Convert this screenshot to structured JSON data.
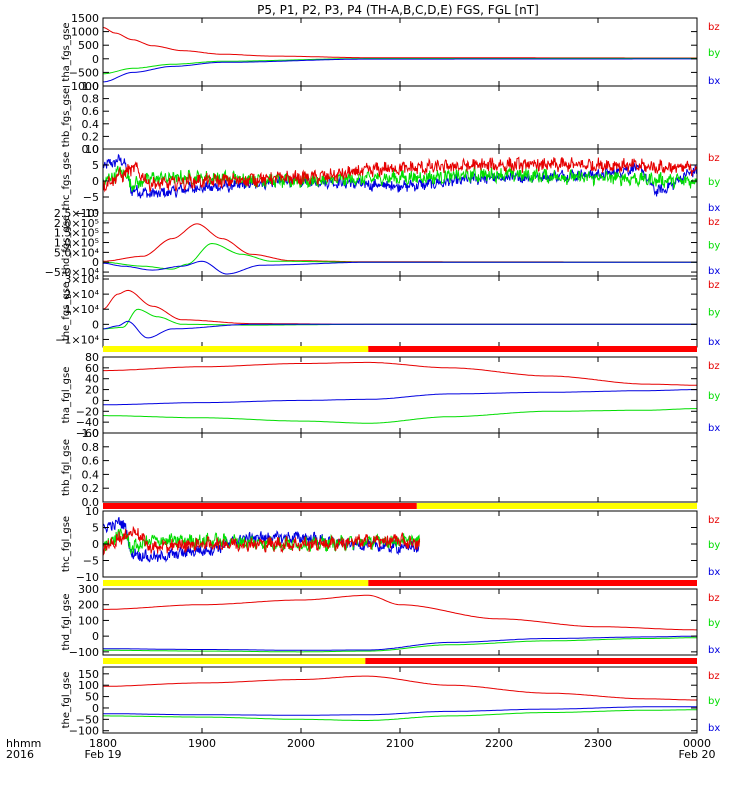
{
  "title": "P5, P1, P2, P3, P4 (TH-A,B,C,D,E) FGS, FGL [nT]",
  "colors": {
    "bz": "#e60000",
    "by": "#00dd00",
    "bx": "#0000e0",
    "bar_yellow": "#ffff00",
    "bar_red": "#ff0000"
  },
  "xaxis": {
    "row_labels": [
      "hhmm",
      "2016"
    ],
    "ticks": [
      {
        "x": 1800,
        "lines": [
          "1800",
          "Feb 19"
        ]
      },
      {
        "x": 1900,
        "lines": [
          "1900",
          ""
        ]
      },
      {
        "x": 2000,
        "lines": [
          "2000",
          ""
        ]
      },
      {
        "x": 2100,
        "lines": [
          "2100",
          ""
        ]
      },
      {
        "x": 2200,
        "lines": [
          "2200",
          ""
        ]
      },
      {
        "x": 2300,
        "lines": [
          "2300",
          ""
        ]
      },
      {
        "x": 2400,
        "lines": [
          "0000",
          "Feb 20"
        ]
      }
    ],
    "range": [
      1800,
      2400
    ]
  },
  "chart_data": [
    {
      "type": "line",
      "ylabel": "tha_fgs_gse",
      "ylim": [
        -1000,
        1500
      ],
      "ticks": [
        [
          "1500",
          1500
        ],
        [
          "1000",
          1000
        ],
        [
          "500",
          500
        ],
        [
          "0",
          0
        ],
        [
          "−500",
          -500
        ],
        [
          "−1000",
          -1000
        ]
      ],
      "legend": [
        "bz",
        "by",
        "bx"
      ],
      "series": [
        {
          "name": "bz",
          "shape": "decay",
          "x": [
            1800,
            1812,
            1830,
            1850,
            1880,
            1920,
            1970,
            2070,
            2400
          ],
          "y": [
            1150,
            950,
            700,
            480,
            300,
            170,
            100,
            40,
            30
          ]
        },
        {
          "name": "by",
          "shape": "smooth",
          "x": [
            1800,
            1830,
            1870,
            1920,
            2070,
            2400
          ],
          "y": [
            -550,
            -350,
            -200,
            -90,
            10,
            15
          ]
        },
        {
          "name": "bx",
          "shape": "smooth",
          "x": [
            1800,
            1830,
            1870,
            1920,
            2070,
            2400
          ],
          "y": [
            -850,
            -500,
            -280,
            -130,
            -10,
            -5
          ]
        }
      ]
    },
    {
      "type": "line",
      "ylabel": "thb_fgs_gse",
      "ylim": [
        0,
        1.0
      ],
      "ticks": [
        [
          "1.0",
          1.0
        ],
        [
          "0.8",
          0.8
        ],
        [
          "0.6",
          0.6
        ],
        [
          "0.4",
          0.4
        ],
        [
          "0.2",
          0.2
        ],
        [
          "0.0",
          0.0
        ]
      ],
      "legend": [],
      "series": []
    },
    {
      "type": "line",
      "ylabel": "thc_fgs_gse",
      "ylim": [
        -10,
        10
      ],
      "ticks": [
        [
          "10",
          10
        ],
        [
          "5",
          5
        ],
        [
          "0",
          0
        ],
        [
          "−5",
          -5
        ],
        [
          "−10",
          -10
        ]
      ],
      "legend": [
        "bz",
        "by",
        "bx"
      ],
      "series": [
        {
          "name": "bx",
          "shape": "noisy",
          "amp": 1.5,
          "x": [
            1800,
            1820,
            1830,
            1850,
            1900,
            2000,
            2100,
            2200,
            2300,
            2340,
            2360,
            2400
          ],
          "y": [
            5,
            6.5,
            -3,
            -4,
            -2,
            0,
            -1.5,
            1,
            2,
            4,
            -3,
            3
          ]
        },
        {
          "name": "by",
          "shape": "noisy",
          "amp": 1.8,
          "x": [
            1800,
            1820,
            1830,
            1850,
            1900,
            2000,
            2100,
            2200,
            2300,
            2400
          ],
          "y": [
            0,
            3,
            -1,
            1,
            1,
            0,
            1,
            2,
            1,
            0
          ]
        },
        {
          "name": "bz",
          "shape": "noisy",
          "amp": 1.8,
          "x": [
            1800,
            1820,
            1830,
            1850,
            1900,
            2000,
            2100,
            2200,
            2300,
            2400
          ],
          "y": [
            -1,
            2,
            4,
            -1,
            0,
            1,
            4,
            5,
            5,
            4
          ]
        }
      ]
    },
    {
      "type": "line",
      "ylabel": "thd_fgs_gse",
      "ylim": [
        -70000,
        250000
      ],
      "ticks": [
        [
          "2.5×10⁵",
          250000
        ],
        [
          "2.0×10⁵",
          200000
        ],
        [
          "1.5×10⁵",
          150000
        ],
        [
          "1.0×10⁵",
          100000
        ],
        [
          "5.0×10⁴",
          50000
        ],
        [
          "0",
          0
        ],
        [
          "−5.0×10⁴",
          -50000
        ]
      ],
      "legend": [
        "bz",
        "by",
        "bx"
      ],
      "series": [
        {
          "name": "bz",
          "shape": "smooth",
          "x": [
            1800,
            1840,
            1870,
            1895,
            1920,
            1950,
            1990,
            2070,
            2400
          ],
          "y": [
            5000,
            30000,
            120000,
            195000,
            120000,
            40000,
            8000,
            2000,
            1000
          ]
        },
        {
          "name": "by",
          "shape": "smooth",
          "x": [
            1800,
            1840,
            1870,
            1885,
            1910,
            1940,
            1970,
            2070,
            2400
          ],
          "y": [
            0,
            -20000,
            -35000,
            -10000,
            95000,
            40000,
            5000,
            0,
            0
          ]
        },
        {
          "name": "bx",
          "shape": "smooth",
          "x": [
            1800,
            1820,
            1850,
            1880,
            1900,
            1925,
            1960,
            2070,
            2400
          ],
          "y": [
            -5000,
            -20000,
            -40000,
            -20000,
            5000,
            -60000,
            -15000,
            0,
            0
          ]
        }
      ]
    },
    {
      "type": "line",
      "ylabel": "the_fgs_gse",
      "ylim": [
        -15000,
        32000
      ],
      "ticks": [
        [
          "3×10⁴",
          30000
        ],
        [
          "2×10⁴",
          20000
        ],
        [
          "1×10⁴",
          10000
        ],
        [
          "0",
          0
        ],
        [
          "−1×10⁴",
          -10000
        ]
      ],
      "legend": [
        "bz",
        "by",
        "bx"
      ],
      "series": [
        {
          "name": "bz",
          "shape": "smooth",
          "x": [
            1800,
            1815,
            1825,
            1850,
            1880,
            1950,
            2070,
            2400
          ],
          "y": [
            10000,
            20000,
            22500,
            12000,
            3000,
            500,
            0,
            0
          ]
        },
        {
          "name": "by",
          "shape": "smooth",
          "x": [
            1800,
            1820,
            1835,
            1855,
            1880,
            1950,
            2070,
            2400
          ],
          "y": [
            -3000,
            -2000,
            10000,
            5000,
            0,
            -500,
            0,
            0
          ]
        },
        {
          "name": "bx",
          "shape": "smooth",
          "x": [
            1800,
            1815,
            1825,
            1845,
            1870,
            1950,
            2070,
            2400
          ],
          "y": [
            -3000,
            -1000,
            2000,
            -9000,
            -3000,
            0,
            0,
            0
          ]
        }
      ]
    },
    {
      "type": "line",
      "ylabel": "tha_fgl_gse",
      "ylim": [
        -60,
        80
      ],
      "ticks": [
        [
          "80",
          80
        ],
        [
          "60",
          60
        ],
        [
          "40",
          40
        ],
        [
          "20",
          20
        ],
        [
          "0",
          0
        ],
        [
          "−20",
          -20
        ],
        [
          "−40",
          -40
        ],
        [
          "−60",
          -60
        ]
      ],
      "legend": [
        "bz",
        "by",
        "bx"
      ],
      "mode_bar": [
        [
          "yellow",
          1800,
          2068
        ],
        [
          "red",
          2068,
          2400
        ]
      ],
      "series": [
        {
          "name": "bz",
          "shape": "smooth",
          "x": [
            1800,
            1900,
            2000,
            2068,
            2150,
            2250,
            2350,
            2400
          ],
          "y": [
            55,
            62,
            68,
            70,
            60,
            45,
            30,
            28
          ]
        },
        {
          "name": "bx",
          "shape": "smooth",
          "x": [
            1800,
            1900,
            2000,
            2068,
            2150,
            2250,
            2350,
            2400
          ],
          "y": [
            -8,
            -4,
            0,
            2,
            12,
            15,
            18,
            20
          ]
        },
        {
          "name": "by",
          "shape": "smooth",
          "x": [
            1800,
            1900,
            2000,
            2068,
            2150,
            2250,
            2350,
            2400
          ],
          "y": [
            -28,
            -32,
            -38,
            -42,
            -30,
            -20,
            -18,
            -15
          ]
        }
      ]
    },
    {
      "type": "line",
      "ylabel": "thb_fgl_gse",
      "ylim": [
        0,
        1.0
      ],
      "ticks": [
        [
          "1.0",
          1.0
        ],
        [
          "0.8",
          0.8
        ],
        [
          "0.6",
          0.6
        ],
        [
          "0.4",
          0.4
        ],
        [
          "0.2",
          0.2
        ],
        [
          "0.0",
          0.0
        ]
      ],
      "legend": [],
      "series": []
    },
    {
      "type": "line",
      "ylabel": "thc_fgl_gse",
      "ylim": [
        -10,
        10
      ],
      "ticks": [
        [
          "10",
          10
        ],
        [
          "5",
          5
        ],
        [
          "0",
          0
        ],
        [
          "−5",
          -5
        ],
        [
          "−10",
          -10
        ]
      ],
      "legend": [
        "bz",
        "by",
        "bx"
      ],
      "mode_bar": [
        [
          "red",
          1800,
          2117
        ],
        [
          "yellow",
          2117,
          2400
        ]
      ],
      "series": [
        {
          "name": "bx",
          "shape": "noisy",
          "amp": 1.5,
          "x": [
            1800,
            1820,
            1830,
            1850,
            1900,
            1950,
            2000,
            2050,
            2100,
            2120
          ],
          "y": [
            5,
            6.5,
            -3,
            -4,
            -2,
            2,
            2,
            0,
            -1,
            -1
          ]
        },
        {
          "name": "by",
          "shape": "noisy",
          "amp": 1.8,
          "x": [
            1800,
            1820,
            1830,
            1850,
            1900,
            2000,
            2100,
            2120
          ],
          "y": [
            0,
            3,
            -1,
            1,
            1,
            0,
            1,
            1
          ]
        },
        {
          "name": "bz",
          "shape": "noisy",
          "amp": 1.8,
          "x": [
            1800,
            1820,
            1830,
            1850,
            1900,
            2000,
            2100,
            2120
          ],
          "y": [
            -1,
            2,
            4,
            -1,
            0,
            0,
            1,
            0
          ]
        }
      ]
    },
    {
      "type": "line",
      "ylabel": "thd_fgl_gse",
      "ylim": [
        -120,
        300
      ],
      "ticks": [
        [
          "300",
          300
        ],
        [
          "200",
          200
        ],
        [
          "100",
          100
        ],
        [
          "0",
          0
        ],
        [
          "−100",
          -100
        ]
      ],
      "legend": [
        "bz",
        "by",
        "bx"
      ],
      "mode_bar": [
        [
          "yellow",
          1800,
          2068
        ],
        [
          "red",
          2068,
          2400
        ]
      ],
      "series": [
        {
          "name": "bz",
          "shape": "smooth",
          "x": [
            1800,
            1900,
            2000,
            2068,
            2100,
            2200,
            2300,
            2400
          ],
          "y": [
            170,
            200,
            230,
            260,
            200,
            110,
            60,
            40
          ]
        },
        {
          "name": "bx",
          "shape": "smooth",
          "x": [
            1800,
            1900,
            2000,
            2068,
            2150,
            2250,
            2350,
            2400
          ],
          "y": [
            -80,
            -85,
            -90,
            -88,
            -40,
            -15,
            -5,
            0
          ]
        },
        {
          "name": "by",
          "shape": "smooth",
          "x": [
            1800,
            1900,
            2000,
            2068,
            2150,
            2250,
            2350,
            2400
          ],
          "y": [
            -90,
            -95,
            -100,
            -95,
            -55,
            -30,
            -15,
            -10
          ]
        }
      ]
    },
    {
      "type": "line",
      "ylabel": "the_fgl_gse",
      "ylim": [
        -110,
        180
      ],
      "ticks": [
        [
          "150",
          150
        ],
        [
          "100",
          100
        ],
        [
          "50",
          50
        ],
        [
          "0",
          0
        ],
        [
          "−50",
          -50
        ],
        [
          "−100",
          -100
        ]
      ],
      "legend": [
        "bz",
        "by",
        "bx"
      ],
      "mode_bar": [
        [
          "yellow",
          1800,
          2065
        ],
        [
          "red",
          2065,
          2400
        ]
      ],
      "series": [
        {
          "name": "bz",
          "shape": "smooth",
          "x": [
            1800,
            1900,
            2000,
            2065,
            2150,
            2250,
            2350,
            2400
          ],
          "y": [
            95,
            110,
            125,
            140,
            100,
            65,
            40,
            35
          ]
        },
        {
          "name": "bx",
          "shape": "smooth",
          "x": [
            1800,
            1900,
            2000,
            2065,
            2150,
            2250,
            2350,
            2400
          ],
          "y": [
            -25,
            -30,
            -32,
            -30,
            -15,
            -5,
            5,
            5
          ]
        },
        {
          "name": "by",
          "shape": "smooth",
          "x": [
            1800,
            1900,
            2000,
            2065,
            2150,
            2250,
            2350,
            2400
          ],
          "y": [
            -35,
            -40,
            -50,
            -55,
            -35,
            -20,
            -10,
            -8
          ]
        }
      ]
    }
  ]
}
